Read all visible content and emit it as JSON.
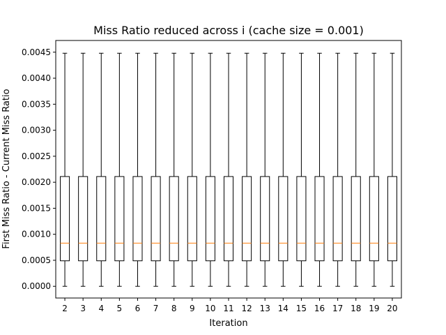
{
  "chart_data": {
    "type": "box",
    "title": "Miss Ratio reduced across i (cache size = 0.001)",
    "xlabel": "Iteration",
    "ylabel": "First Miss Ratio - Current Miss Ratio",
    "categories": [
      "2",
      "3",
      "4",
      "5",
      "6",
      "7",
      "8",
      "9",
      "10",
      "11",
      "12",
      "13",
      "14",
      "15",
      "16",
      "17",
      "18",
      "19",
      "20"
    ],
    "yticks": [
      0.0,
      0.0005,
      0.001,
      0.0015,
      0.002,
      0.0025,
      0.003,
      0.0035,
      0.004,
      0.0045
    ],
    "ytick_labels": [
      "0.0000",
      "0.0005",
      "0.0010",
      "0.0015",
      "0.0020",
      "0.0025",
      "0.0030",
      "0.0035",
      "0.0040",
      "0.0045"
    ],
    "ylim": [
      -0.000225,
      0.004725
    ],
    "box": {
      "whisker_low": 0.0,
      "q1": 0.00049,
      "median": 0.00083,
      "q3": 0.00211,
      "whisker_high": 0.00448
    },
    "grid": false,
    "colors": {
      "box": "#000000",
      "median": "#ff7f0e"
    }
  }
}
